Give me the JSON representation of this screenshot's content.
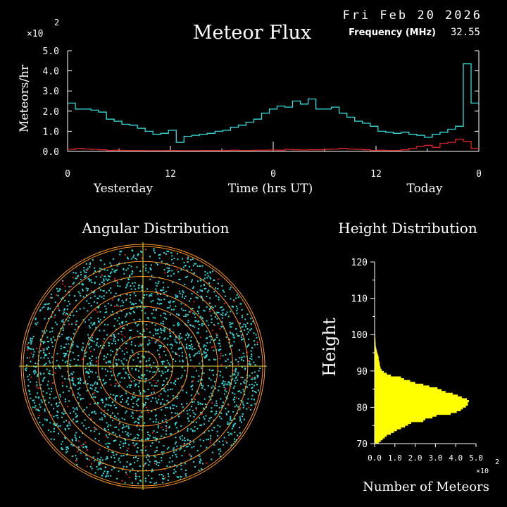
{
  "header": {
    "date": "Fri Feb 20 2026",
    "frequency_label": "Frequency (MHz)",
    "frequency_value": "32.55"
  },
  "colors": {
    "background": "#000000",
    "axis": "#ffffff",
    "flux_line": "#33dddd",
    "flux_lower_line": "#dd2222",
    "polar_rings": "#ff9922",
    "polar_cross": "#e8e040",
    "angular_points_a": "#33dddd",
    "angular_points_b": "#dd2222",
    "height_bars": "#ffff00"
  },
  "chart_data": [
    {
      "type": "line",
      "title": "Meteor Flux",
      "ylabel": "Meteors/hr",
      "xlabel": "Time (hrs UT)",
      "y_multiplier_label": "×10",
      "y_multiplier_exp": "2",
      "ylim": [
        0,
        5
      ],
      "yticks": [
        "0.0",
        "1.0",
        "2.0",
        "3.0",
        "4.0",
        "5.0"
      ],
      "xticks": [
        "0",
        "12",
        "0",
        "12",
        "0"
      ],
      "x_day_labels": [
        "Yesterday",
        "Today"
      ],
      "x_range_hours": [
        0,
        48
      ],
      "step_hours": 1,
      "series": [
        {
          "values": [
            2.4,
            2.1,
            2.1,
            2.05,
            1.95,
            1.6,
            1.5,
            1.35,
            1.3,
            1.15,
            1.0,
            0.85,
            0.9,
            1.05,
            0.45,
            0.75,
            0.8,
            0.85,
            0.9,
            1.0,
            1.05,
            1.2,
            1.3,
            1.45,
            1.6,
            1.9,
            2.1,
            2.25,
            2.2,
            2.5,
            2.35,
            2.6,
            2.1,
            2.1,
            2.2,
            1.9,
            1.7,
            1.5,
            1.4,
            1.25,
            1.0,
            0.95,
            0.9,
            0.95,
            0.85,
            0.8,
            0.7,
            0.85,
            0.95,
            1.1,
            1.25,
            4.35,
            2.4
          ]
        },
        {
          "values": [
            0.1,
            0.15,
            0.12,
            0.1,
            0.08,
            0.05,
            0.06,
            0.05,
            0.05,
            0.05,
            0.04,
            0.04,
            0.04,
            0.05,
            0.04,
            0.04,
            0.04,
            0.05,
            0.05,
            0.05,
            0.05,
            0.06,
            0.05,
            0.05,
            0.06,
            0.06,
            0.07,
            0.06,
            0.1,
            0.08,
            0.07,
            0.08,
            0.08,
            0.1,
            0.12,
            0.15,
            0.12,
            0.1,
            0.08,
            0.05,
            0.06,
            0.05,
            0.05,
            0.08,
            0.15,
            0.25,
            0.3,
            0.2,
            0.4,
            0.45,
            0.6,
            0.5,
            0.15
          ]
        }
      ]
    },
    {
      "type": "scatter",
      "title": "Angular Distribution",
      "ring_count": 8
    },
    {
      "type": "bar",
      "orientation": "horizontal",
      "title": "Height Distribution",
      "ylabel": "Height",
      "xlabel": "Number of Meteors",
      "x_multiplier_label": "×10",
      "x_multiplier_exp": "2",
      "xlim": [
        0,
        5
      ],
      "xticks": [
        "0.0",
        "1.0",
        "2.0",
        "3.0",
        "4.0",
        "5.0"
      ],
      "ylim": [
        70,
        120
      ],
      "yticks": [
        "70",
        "80",
        "90",
        "100",
        "110",
        "120"
      ],
      "bin_start": 70,
      "bin_width": 0.5,
      "values": [
        0.2,
        0.3,
        0.4,
        0.5,
        0.6,
        0.8,
        0.95,
        1.1,
        1.3,
        1.5,
        1.65,
        1.8,
        2.4,
        2.5,
        2.85,
        3.05,
        3.75,
        4.05,
        4.25,
        4.35,
        4.5,
        4.6,
        4.6,
        4.65,
        4.55,
        4.3,
        4.1,
        3.85,
        3.5,
        3.3,
        3.1,
        2.7,
        2.4,
        2.0,
        1.75,
        1.45,
        1.3,
        0.8,
        0.6,
        0.45,
        0.35,
        0.3,
        0.28,
        0.25,
        0.25,
        0.22,
        0.2,
        0.2,
        0.18,
        0.15,
        0.12,
        0.1,
        0.08,
        0.06,
        0.05,
        0.05,
        0.04,
        0.04,
        0.03,
        0.03,
        0.02,
        0.02,
        0.02,
        0.02,
        0.01,
        0.01,
        0.01,
        0.01,
        0.01,
        0.01,
        0.01,
        0.01,
        0.01,
        0.01,
        0.01,
        0.01,
        0.01,
        0.01,
        0.01,
        0.01,
        0.01,
        0.01,
        0.01,
        0.01,
        0.01,
        0.01,
        0.01,
        0.01,
        0.01,
        0.01,
        0.01,
        0.01,
        0.01,
        0.01,
        0.01,
        0.01,
        0.01,
        0.01,
        0.01,
        0.01
      ]
    }
  ]
}
